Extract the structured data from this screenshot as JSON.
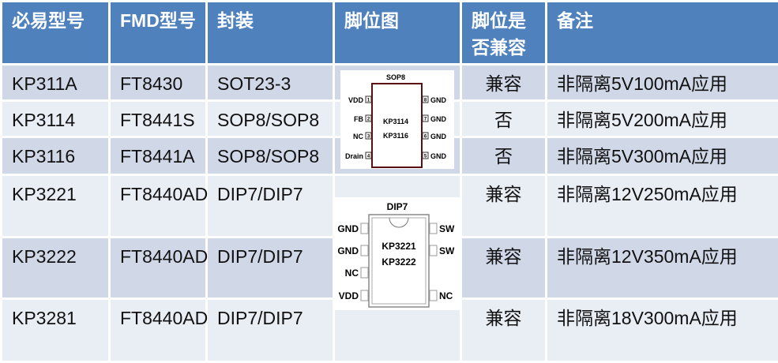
{
  "headers": [
    "必易型号",
    "FMD型号",
    "封装",
    "脚位图",
    "脚位是否兼容",
    "备注"
  ],
  "rows": [
    {
      "model": "KP311A",
      "fmd": "FT8430",
      "pkg": "SOT23-3",
      "compat": "兼容",
      "note": "非隔离5V100mA应用"
    },
    {
      "model": "KP3114",
      "fmd": "FT8441S",
      "pkg": "SOP8/SOP8",
      "compat": "否",
      "note": "非隔离5V200mA应用"
    },
    {
      "model": "KP3116",
      "fmd": "FT8441A",
      "pkg": "SOP8/SOP8",
      "compat": "否",
      "note": "非隔离5V300mA应用"
    },
    {
      "model": "KP3221",
      "fmd": "FT8440AD",
      "pkg": "DIP7/DIP7",
      "compat": "兼容",
      "note": "非隔离12V250mA应用"
    },
    {
      "model": "KP3222",
      "fmd": "FT8440AD",
      "pkg": "DIP7/DIP7",
      "compat": "兼容",
      "note": "非隔离12V350mA应用"
    },
    {
      "model": "KP3281",
      "fmd": "FT8440AD",
      "pkg": "DIP7/DIP7",
      "compat": "兼容",
      "note": "非隔离18V300mA应用"
    }
  ],
  "sop8": {
    "title": "SOP8",
    "chip": [
      "KP3114",
      "KP3116"
    ],
    "left": [
      "VDD",
      "FB",
      "NC",
      "Drain"
    ],
    "right": [
      "GND",
      "GND",
      "GND",
      "GND"
    ],
    "left_nums": [
      "1",
      "2",
      "3",
      "4"
    ],
    "right_nums": [
      "8",
      "7",
      "6",
      "5"
    ]
  },
  "dip7": {
    "title": "DIP7",
    "chip": [
      "KP3221",
      "KP3222"
    ],
    "left": [
      "GND",
      "GND",
      "NC",
      "VDD"
    ],
    "right": [
      "SW",
      "SW",
      "NC"
    ]
  },
  "colors": {
    "header": "#4f81bd",
    "row_dark": "#d0d8e8",
    "row_light": "#e9edf4"
  }
}
